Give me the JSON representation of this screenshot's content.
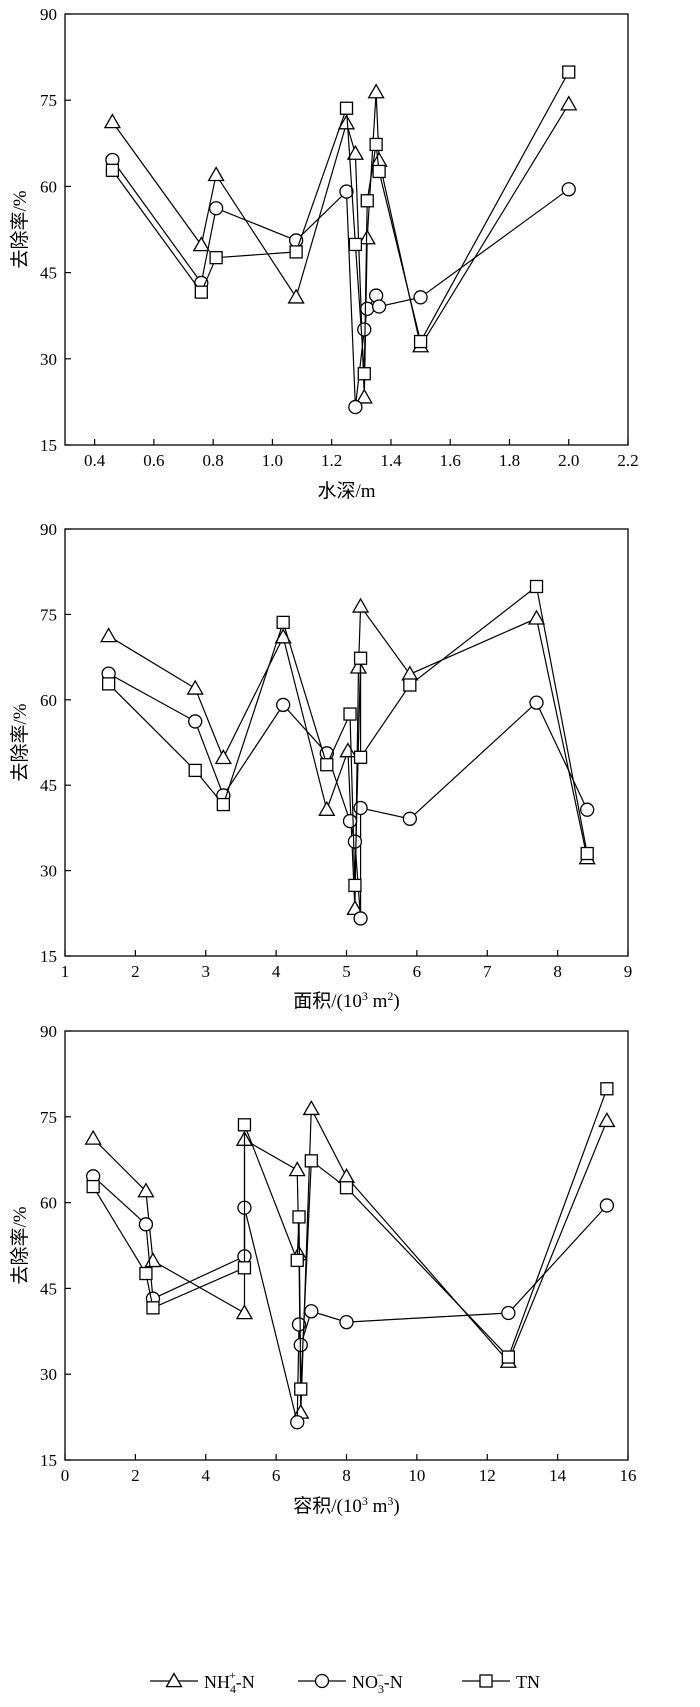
{
  "chart_data": [
    {
      "type": "line",
      "xlabel": "水深/m",
      "ylabel": "去除率/%",
      "xlim": [
        0.3,
        2.2
      ],
      "ylim": [
        15,
        90
      ],
      "xticks": [
        0.4,
        0.6,
        0.8,
        1.0,
        1.2,
        1.4,
        1.6,
        1.8,
        2.0,
        2.2
      ],
      "xtick_labels": [
        "0.4",
        "0.6",
        "0.8",
        "1.0",
        "1.2",
        "1.4",
        "1.6",
        "1.8",
        "2.0",
        "2.2"
      ],
      "yticks": [
        15,
        30,
        45,
        60,
        75,
        90
      ],
      "ytick_labels": [
        "15",
        "30",
        "45",
        "60",
        "75",
        "90"
      ],
      "series": [
        {
          "name": "NH4+-N",
          "marker": "triangle",
          "points": [
            [
              0.46,
              71.2
            ],
            [
              0.76,
              49.8
            ],
            [
              0.81,
              62.0
            ],
            [
              1.08,
              40.7
            ],
            [
              1.25,
              71.0
            ],
            [
              1.28,
              65.7
            ],
            [
              1.31,
              23.3
            ],
            [
              1.32,
              51.0
            ],
            [
              1.35,
              76.4
            ],
            [
              1.36,
              64.5
            ],
            [
              1.5,
              32.2
            ],
            [
              2.0,
              74.3
            ]
          ]
        },
        {
          "name": "NO3−-N",
          "marker": "circle",
          "points": [
            [
              0.46,
              64.6
            ],
            [
              0.76,
              43.2
            ],
            [
              0.81,
              56.2
            ],
            [
              1.08,
              50.6
            ],
            [
              1.25,
              59.1
            ],
            [
              1.28,
              21.6
            ],
            [
              1.31,
              35.1
            ],
            [
              1.32,
              38.7
            ],
            [
              1.35,
              41.0
            ],
            [
              1.36,
              39.1
            ],
            [
              1.5,
              40.7
            ],
            [
              2.0,
              59.5
            ]
          ]
        },
        {
          "name": "TN",
          "marker": "square",
          "points": [
            [
              0.46,
              62.8
            ],
            [
              0.76,
              41.6
            ],
            [
              0.81,
              47.6
            ],
            [
              1.08,
              48.6
            ],
            [
              1.25,
              73.6
            ],
            [
              1.28,
              49.9
            ],
            [
              1.31,
              27.4
            ],
            [
              1.32,
              57.5
            ],
            [
              1.35,
              67.3
            ],
            [
              1.36,
              62.6
            ],
            [
              1.5,
              33.0
            ],
            [
              2.0,
              79.9
            ]
          ]
        }
      ]
    },
    {
      "type": "line",
      "xlabel": "面积/(10³ m²)",
      "ylabel": "去除率/%",
      "xlim": [
        1,
        9
      ],
      "ylim": [
        15,
        90
      ],
      "xticks": [
        1,
        2,
        3,
        4,
        5,
        6,
        7,
        8,
        9
      ],
      "xtick_labels": [
        "1",
        "2",
        "3",
        "4",
        "5",
        "6",
        "7",
        "8",
        "9"
      ],
      "yticks": [
        15,
        30,
        45,
        60,
        75,
        90
      ],
      "ytick_labels": [
        "15",
        "30",
        "45",
        "60",
        "75",
        "90"
      ],
      "series": [
        {
          "name": "NH4+-N",
          "marker": "triangle",
          "points": [
            [
              1.62,
              71.2
            ],
            [
              2.85,
              62.0
            ],
            [
              3.25,
              49.8
            ],
            [
              4.1,
              71.0
            ],
            [
              4.72,
              40.7
            ],
            [
              5.02,
              51.0
            ],
            [
              5.12,
              23.3
            ],
            [
              5.17,
              65.7
            ],
            [
              5.2,
              76.4
            ],
            [
              5.9,
              64.5
            ],
            [
              7.7,
              74.3
            ],
            [
              8.42,
              32.2
            ]
          ]
        },
        {
          "name": "NO3−-N",
          "marker": "circle",
          "points": [
            [
              1.62,
              64.6
            ],
            [
              2.85,
              56.2
            ],
            [
              3.25,
              43.2
            ],
            [
              4.1,
              59.1
            ],
            [
              4.72,
              50.6
            ],
            [
              5.05,
              38.7
            ],
            [
              5.12,
              35.1
            ],
            [
              5.2,
              21.6
            ],
            [
              5.2,
              41.0
            ],
            [
              5.9,
              39.1
            ],
            [
              7.7,
              59.5
            ],
            [
              8.42,
              40.7
            ]
          ]
        },
        {
          "name": "TN",
          "marker": "square",
          "points": [
            [
              1.62,
              62.8
            ],
            [
              2.85,
              47.6
            ],
            [
              3.25,
              41.6
            ],
            [
              4.1,
              73.6
            ],
            [
              4.72,
              48.6
            ],
            [
              5.05,
              57.5
            ],
            [
              5.12,
              27.4
            ],
            [
              5.2,
              67.3
            ],
            [
              5.2,
              49.9
            ],
            [
              5.9,
              62.6
            ],
            [
              7.7,
              79.9
            ],
            [
              8.42,
              33.0
            ]
          ]
        }
      ]
    },
    {
      "type": "line",
      "xlabel": "容积/(10³ m³)",
      "ylabel": "去除率/%",
      "xlim": [
        0,
        16
      ],
      "ylim": [
        15,
        90
      ],
      "xticks": [
        0,
        2,
        4,
        6,
        8,
        10,
        12,
        14,
        16
      ],
      "xtick_labels": [
        "0",
        "2",
        "4",
        "6",
        "8",
        "10",
        "12",
        "14",
        "16"
      ],
      "yticks": [
        15,
        30,
        45,
        60,
        75,
        90
      ],
      "ytick_labels": [
        "15",
        "30",
        "45",
        "60",
        "75",
        "90"
      ],
      "series": [
        {
          "name": "NH4+-N",
          "marker": "triangle",
          "points": [
            [
              0.8,
              71.2
            ],
            [
              2.3,
              62.0
            ],
            [
              2.5,
              49.8
            ],
            [
              5.1,
              40.7
            ],
            [
              5.1,
              71.0
            ],
            [
              6.6,
              65.7
            ],
            [
              6.65,
              51.0
            ],
            [
              6.7,
              23.3
            ],
            [
              7.0,
              76.4
            ],
            [
              8.0,
              64.5
            ],
            [
              12.6,
              32.2
            ],
            [
              15.4,
              74.3
            ]
          ]
        },
        {
          "name": "NO3−-N",
          "marker": "circle",
          "points": [
            [
              0.8,
              64.6
            ],
            [
              2.3,
              56.2
            ],
            [
              2.5,
              43.2
            ],
            [
              5.1,
              50.6
            ],
            [
              5.1,
              59.1
            ],
            [
              6.6,
              21.6
            ],
            [
              6.65,
              38.7
            ],
            [
              6.7,
              35.1
            ],
            [
              7.0,
              41.0
            ],
            [
              8.0,
              39.1
            ],
            [
              12.6,
              40.7
            ],
            [
              15.4,
              59.5
            ]
          ]
        },
        {
          "name": "TN",
          "marker": "square",
          "points": [
            [
              0.8,
              62.8
            ],
            [
              2.3,
              47.6
            ],
            [
              2.5,
              41.6
            ],
            [
              5.1,
              48.6
            ],
            [
              5.1,
              73.6
            ],
            [
              6.6,
              49.9
            ],
            [
              6.65,
              57.5
            ],
            [
              6.7,
              27.4
            ],
            [
              7.0,
              67.3
            ],
            [
              8.0,
              62.6
            ],
            [
              12.6,
              33.0
            ],
            [
              15.4,
              79.9
            ]
          ]
        }
      ]
    }
  ],
  "legend": {
    "placement": "bottom-center",
    "items": [
      {
        "marker": "triangle",
        "base": "NH",
        "sub": "4",
        "sup": "+",
        "rest": "-N"
      },
      {
        "marker": "circle",
        "base": "NO",
        "sub": "3",
        "sup": "−",
        "rest": "-N"
      },
      {
        "marker": "square",
        "base": "TN",
        "sub": "",
        "sup": "",
        "rest": ""
      }
    ]
  }
}
